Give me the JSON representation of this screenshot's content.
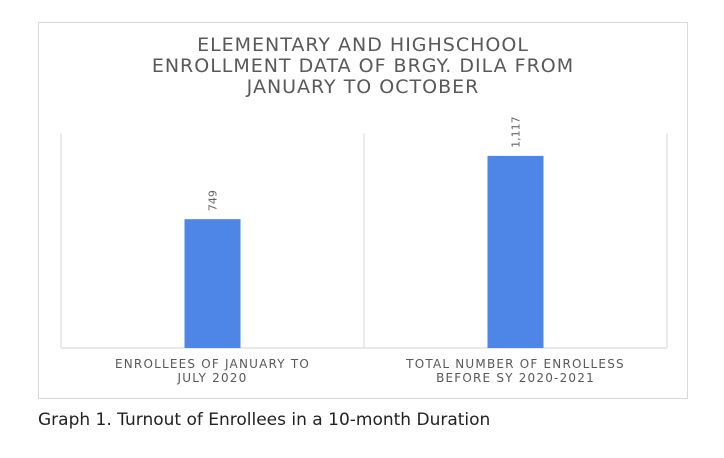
{
  "chart_data": {
    "type": "bar",
    "title_lines": [
      "ELEMENTARY AND HIGHSCHOOL",
      "ENROLLMENT DATA OF BRGY. DILA FROM",
      "JANUARY TO OCTOBER"
    ],
    "categories": [
      [
        "ENROLLEES OF JANUARY TO",
        "JULY 2020"
      ],
      [
        "TOTAL NUMBER OF ENROLLESS",
        "BEFORE SY 2020-2021"
      ]
    ],
    "values": [
      749,
      1117
    ],
    "data_labels": [
      "749",
      "1,117"
    ],
    "ylim": [
      0,
      1250
    ],
    "grid": "vertical-category-dividers",
    "bar_color": "#4e86e8"
  },
  "caption": "Graph 1. Turnout of Enrollees in a 10-month Duration"
}
